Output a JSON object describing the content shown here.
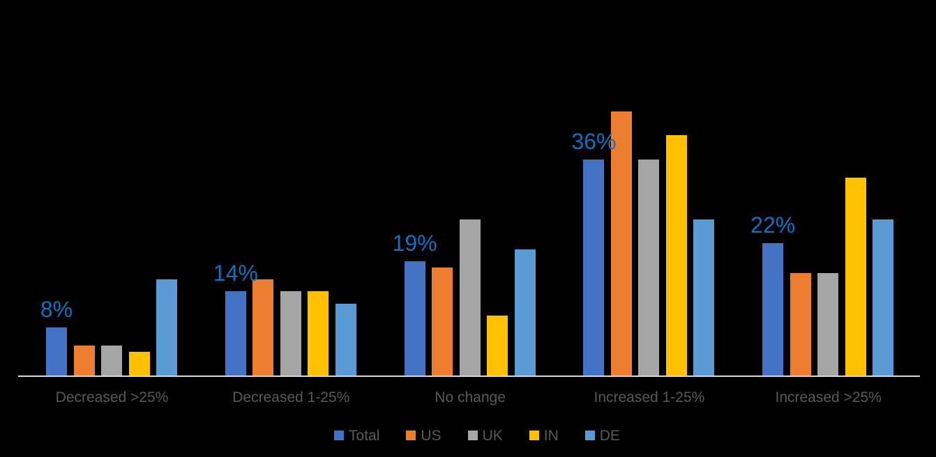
{
  "chart_data": {
    "type": "bar",
    "title": "",
    "xlabel": "",
    "ylabel": "",
    "unit": "%",
    "grid": false,
    "legend_position": "bottom",
    "background_color": "#000000",
    "axis_line_color": "#D9D9D9",
    "axis_text_color": "#595959",
    "ylim": [
      0,
      47
    ],
    "categories": [
      "Decreased >25%",
      "Decreased 1-25%",
      "No change",
      "Increased 1-25%",
      "Increased >25%"
    ],
    "series": [
      {
        "name": "Total",
        "color": "#4472C4",
        "values": [
          8,
          14,
          19,
          36,
          22
        ]
      },
      {
        "name": "US",
        "color": "#ED7D31",
        "values": [
          5,
          16,
          18,
          44,
          17
        ]
      },
      {
        "name": "UK",
        "color": "#A5A5A5",
        "values": [
          5,
          14,
          26,
          36,
          17
        ]
      },
      {
        "name": "IN",
        "color": "#FFC000",
        "values": [
          4,
          14,
          10,
          40,
          33
        ]
      },
      {
        "name": "DE",
        "color": "#5B9BD5",
        "values": [
          16,
          12,
          21,
          26,
          26
        ]
      }
    ],
    "data_labels": {
      "on_series": "Total",
      "labels": [
        "8%",
        "14%",
        "19%",
        "36%",
        "22%"
      ],
      "color": "#0F72C1"
    }
  }
}
